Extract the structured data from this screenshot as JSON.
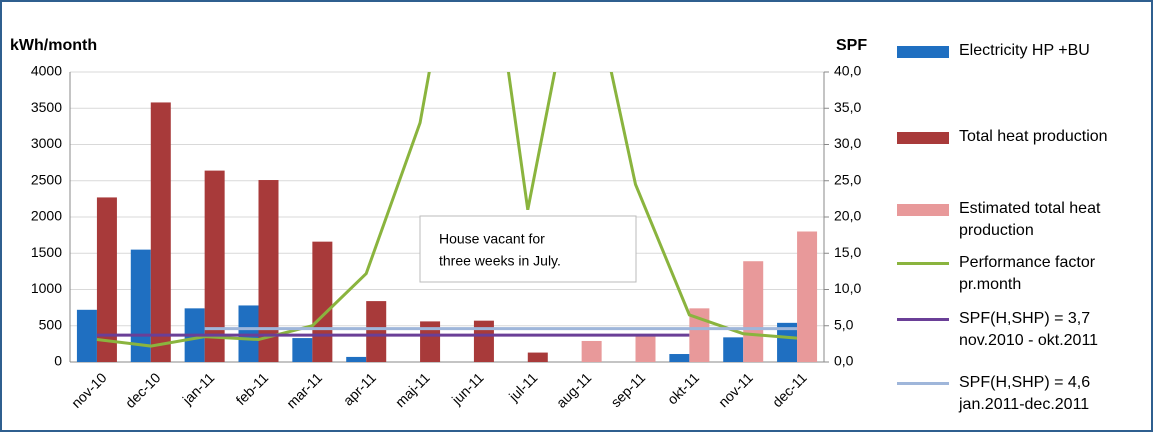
{
  "chart_data": {
    "type": "bar",
    "y_label": "kWh/month",
    "y2_label": "SPF",
    "categories": [
      "nov-10",
      "dec-10",
      "jan-11",
      "feb-11",
      "mar-11",
      "apr-11",
      "maj-11",
      "jun-11",
      "jul-11",
      "aug-11",
      "sep-11",
      "okt-11",
      "nov-11",
      "dec-11"
    ],
    "series": [
      {
        "name": "Electricity HP +BU",
        "type": "bar",
        "color": "#1f6fc1",
        "values": [
          720,
          1550,
          740,
          780,
          330,
          70,
          null,
          null,
          null,
          null,
          null,
          110,
          340,
          540
        ]
      },
      {
        "name": "Total heat production",
        "type": "bar",
        "color": "#a83a3a",
        "values": [
          2270,
          3580,
          2640,
          2510,
          1660,
          840,
          560,
          570,
          130,
          null,
          null,
          null,
          null,
          null
        ]
      },
      {
        "name": "Estimated total heat\nproduction",
        "type": "bar",
        "color": "#e8999a",
        "values": [
          null,
          null,
          null,
          null,
          null,
          null,
          null,
          null,
          null,
          290,
          360,
          740,
          1390,
          1800
        ]
      },
      {
        "name": "Performance factor\npr.month",
        "type": "line",
        "axis": "y2",
        "color": "#8ab43e",
        "values": [
          3.1,
          2.2,
          3.5,
          3.1,
          5.0,
          12.2,
          33,
          74,
          21,
          59,
          24.5,
          6.5,
          3.9,
          3.3
        ]
      },
      {
        "name": "SPF(H,SHP) = 3,7\nnov.2010 - okt.2011",
        "type": "line",
        "axis": "y2",
        "color": "#6a3f97",
        "values": [
          3.7,
          3.7,
          3.7,
          3.7,
          3.7,
          3.7,
          3.7,
          3.7,
          3.7,
          3.7,
          3.7,
          3.7,
          null,
          null
        ]
      },
      {
        "name": "SPF(H,SHP) = 4,6\njan.2011-dec.2011",
        "type": "line",
        "axis": "y2",
        "color": "#9fb6da",
        "values": [
          null,
          null,
          4.6,
          4.6,
          4.6,
          4.6,
          4.6,
          4.6,
          4.6,
          4.6,
          4.6,
          4.6,
          4.6,
          4.6
        ]
      }
    ],
    "annotation": [
      "House vacant for",
      "three weeks in July."
    ],
    "ylim": [
      0,
      4000
    ],
    "yticks": [
      0,
      500,
      1000,
      1500,
      2000,
      2500,
      3000,
      3500,
      4000
    ],
    "y2lim": [
      0,
      40
    ],
    "y2ticks": [
      {
        "value": 0,
        "label": "0,0"
      },
      {
        "value": 5,
        "label": "5,0"
      },
      {
        "value": 10,
        "label": "10,0"
      },
      {
        "value": 15,
        "label": "15,0"
      },
      {
        "value": 20,
        "label": "20,0"
      },
      {
        "value": 25,
        "label": "25,0"
      },
      {
        "value": 30,
        "label": "30,0"
      },
      {
        "value": 35,
        "label": "35,0"
      },
      {
        "value": 40,
        "label": "40,0"
      }
    ],
    "grid": true
  }
}
